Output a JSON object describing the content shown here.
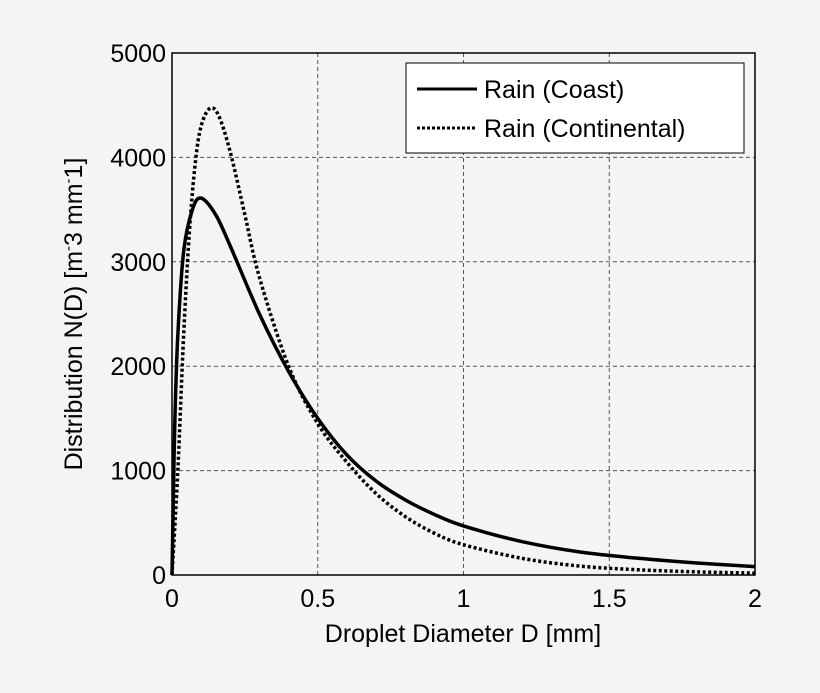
{
  "chart_data": {
    "type": "line",
    "title": "",
    "xlabel": "Droplet Diameter D [mm]",
    "ylabel": "Distribution N(D) [m^-3 mm^-1]",
    "ylabel_parts": {
      "main": "Distribution N(D) [m",
      "sup1": "-",
      "mid": "3 mm",
      "sup2": "-",
      "end": "1]"
    },
    "xlim": [
      0,
      2
    ],
    "ylim": [
      0,
      5000
    ],
    "xticks": [
      0,
      0.5,
      1,
      1.5,
      2
    ],
    "xtick_labels": [
      "0",
      "0.5",
      "1",
      "1.5",
      "2"
    ],
    "yticks": [
      0,
      1000,
      2000,
      3000,
      4000,
      5000
    ],
    "ytick_labels": [
      "0",
      "1000",
      "2000",
      "3000",
      "4000",
      "5000"
    ],
    "grid": true,
    "legend_position": "top-right",
    "series": [
      {
        "name": "Rain (Coast)",
        "style": "solid",
        "x": [
          0,
          0.005,
          0.01,
          0.02,
          0.04,
          0.07,
          0.1,
          0.15,
          0.2,
          0.3,
          0.4,
          0.5,
          0.6,
          0.7,
          0.8,
          0.9,
          1.0,
          1.2,
          1.4,
          1.6,
          1.8,
          2.0
        ],
        "y": [
          0,
          800,
          1500,
          2300,
          3100,
          3500,
          3610,
          3450,
          3150,
          2500,
          1950,
          1500,
          1150,
          900,
          720,
          580,
          470,
          320,
          220,
          160,
          115,
          80
        ]
      },
      {
        "name": "Rain (Continental)",
        "style": "dotted",
        "x": [
          0,
          0.02,
          0.04,
          0.06,
          0.08,
          0.1,
          0.13,
          0.16,
          0.2,
          0.25,
          0.3,
          0.4,
          0.5,
          0.6,
          0.7,
          0.8,
          0.9,
          1.0,
          1.2,
          1.4,
          1.6,
          1.8,
          2.0
        ],
        "y": [
          0,
          1000,
          2300,
          3300,
          3950,
          4300,
          4470,
          4400,
          4050,
          3450,
          2850,
          2000,
          1450,
          1080,
          780,
          560,
          400,
          290,
          160,
          85,
          50,
          30,
          18
        ]
      }
    ],
    "colors": {
      "background": "#f4f4f4",
      "line": "#000000",
      "grid": "#555555",
      "legend_bg": "#ffffff"
    }
  }
}
